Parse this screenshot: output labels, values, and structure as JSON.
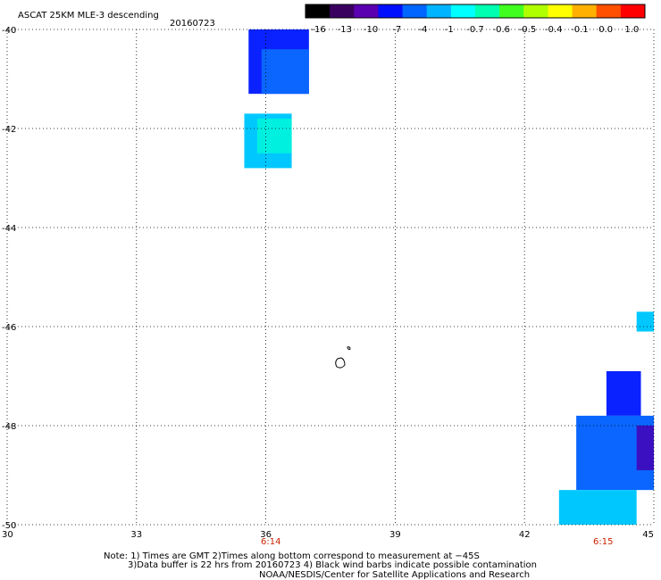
{
  "header": {
    "title": "ASCAT 25KM MLE-3 descending",
    "date": "20160723"
  },
  "colorbar": {
    "labels": [
      "-16",
      "-13",
      "-10",
      "-7",
      "-4",
      "-1",
      "-0.7",
      "-0.6",
      "-0.5",
      "-0.4",
      "-0.1",
      "0.0",
      "1.0"
    ],
    "colors": [
      "#000000",
      "#3a0060",
      "#5a00b0",
      "#0010ff",
      "#0066ff",
      "#00b4ff",
      "#00ffff",
      "#00ffb0",
      "#40ff20",
      "#b0ff00",
      "#ffff00",
      "#ffb000",
      "#ff5000",
      "#ff0000"
    ]
  },
  "time_labels": [
    "6:14",
    "6:15"
  ],
  "notes": {
    "line1": "Note: 1) Times are GMT 2)Times along bottom correspond to measurement at −45S",
    "line2": "3)Data buffer is 22 hrs from 20160723 4) Black wind barbs indicate possible contamination",
    "line3": "NOAA/NESDIS/Center for Satellite Applications and Research"
  },
  "chart_data": {
    "type": "heatmap",
    "title": "ASCAT 25KM MLE-3 descending",
    "date": "20160723",
    "x_ticks": [
      "30",
      "33",
      "36",
      "39",
      "42",
      "45"
    ],
    "y_ticks": [
      "-40",
      "-42",
      "-44",
      "-46",
      "-48",
      "-50"
    ],
    "xlim": [
      30,
      45
    ],
    "ylim": [
      -50,
      -40
    ],
    "grid": true,
    "regions": [
      {
        "lon": [
          35.6,
          37.0
        ],
        "lat": [
          -41.3,
          -40.0
        ],
        "value_class": "-7"
      },
      {
        "lon": [
          35.9,
          37.0
        ],
        "lat": [
          -41.3,
          -40.4
        ],
        "value_class": "-4"
      },
      {
        "lon": [
          35.5,
          36.6
        ],
        "lat": [
          -42.8,
          -41.7
        ],
        "value_class": "-1"
      },
      {
        "lon": [
          35.8,
          36.6
        ],
        "lat": [
          -42.5,
          -41.8
        ],
        "value_class": "-0.7"
      },
      {
        "lon": [
          44.6,
          45.0
        ],
        "lat": [
          -46.1,
          -45.7
        ],
        "value_class": "-1"
      },
      {
        "lon": [
          43.9,
          44.7
        ],
        "lat": [
          -47.8,
          -46.9
        ],
        "value_class": "-7"
      },
      {
        "lon": [
          43.2,
          45.0
        ],
        "lat": [
          -49.3,
          -47.8
        ],
        "value_class": "-4"
      },
      {
        "lon": [
          44.6,
          45.0
        ],
        "lat": [
          -48.9,
          -48.0
        ],
        "value_class": "-10"
      },
      {
        "lon": [
          42.8,
          44.6
        ],
        "lat": [
          -50.0,
          -49.3
        ],
        "value_class": "-1"
      }
    ]
  }
}
